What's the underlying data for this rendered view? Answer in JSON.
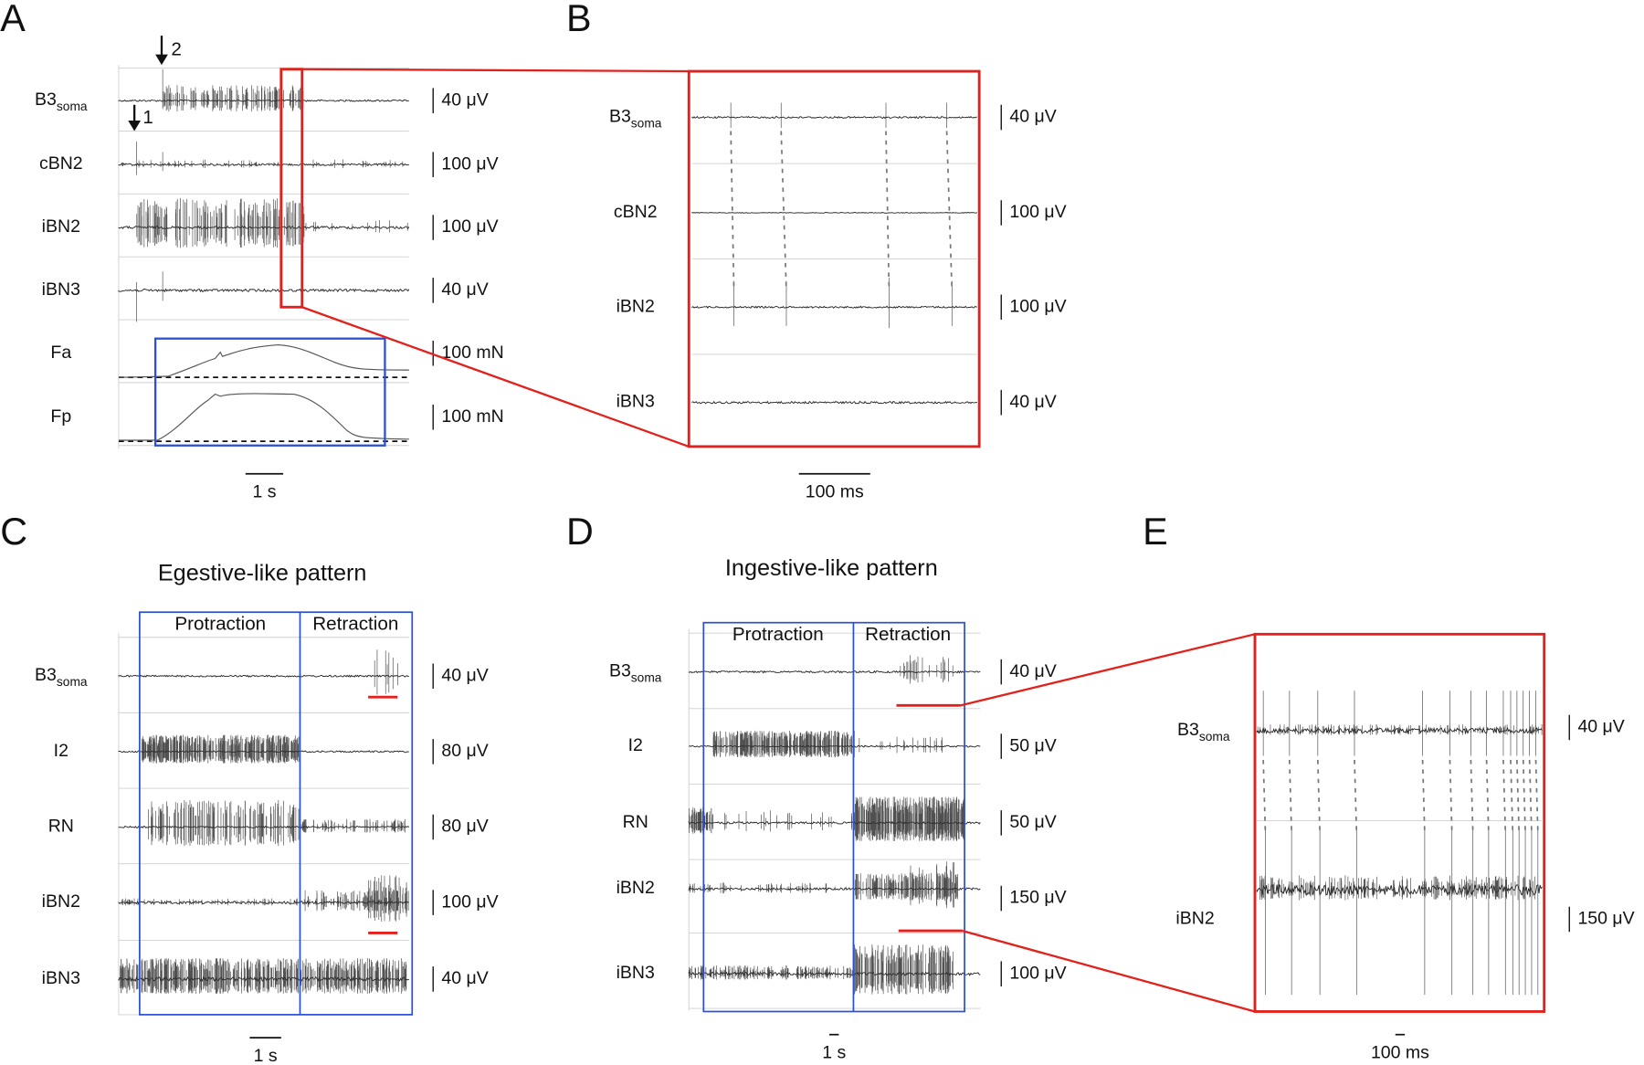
{
  "panels": {
    "A": {
      "letter": "A",
      "arrows": [
        "1",
        "2"
      ],
      "channels": [
        {
          "name": "B3",
          "sub": "soma",
          "scale": "40 μV"
        },
        {
          "name": "cBN2",
          "scale": "100 μV"
        },
        {
          "name": "iBN2",
          "scale": "100 μV"
        },
        {
          "name": "iBN3",
          "scale": "40 μV"
        },
        {
          "name": "Fa",
          "scale": "100 mN"
        },
        {
          "name": "Fp",
          "scale": "100 mN"
        }
      ],
      "timebar": "1 s"
    },
    "B": {
      "letter": "B",
      "channels": [
        {
          "name": "B3",
          "sub": "soma",
          "scale": "40 μV"
        },
        {
          "name": "cBN2",
          "scale": "100 μV"
        },
        {
          "name": "iBN2",
          "scale": "100 μV"
        },
        {
          "name": "iBN3",
          "scale": "40 μV"
        }
      ],
      "timebar": "100 ms"
    },
    "C": {
      "letter": "C",
      "title": "Egestive-like pattern",
      "phases": [
        "Protraction",
        "Retraction"
      ],
      "channels": [
        {
          "name": "B3",
          "sub": "soma",
          "scale": "40 μV"
        },
        {
          "name": "I2",
          "scale": "80 μV"
        },
        {
          "name": "RN",
          "scale": "80 μV"
        },
        {
          "name": "iBN2",
          "scale": "100 μV"
        },
        {
          "name": "iBN3",
          "scale": "40 μV"
        }
      ],
      "timebar": "1 s"
    },
    "D": {
      "letter": "D",
      "title": "Ingestive-like pattern",
      "phases": [
        "Protraction",
        "Retraction"
      ],
      "channels": [
        {
          "name": "B3",
          "sub": "soma",
          "scale": "40 μV"
        },
        {
          "name": "I2",
          "scale": "50 μV"
        },
        {
          "name": "RN",
          "scale": "50 μV"
        },
        {
          "name": "iBN2",
          "scale": "150 μV"
        },
        {
          "name": "iBN3",
          "scale": "100 μV"
        }
      ],
      "timebar": "1 s"
    },
    "E": {
      "letter": "E",
      "channels": [
        {
          "name": "B3",
          "sub": "soma",
          "scale": "40 μV"
        },
        {
          "name": "iBN2",
          "scale": "150 μV"
        }
      ],
      "timebar": "100 ms"
    }
  }
}
